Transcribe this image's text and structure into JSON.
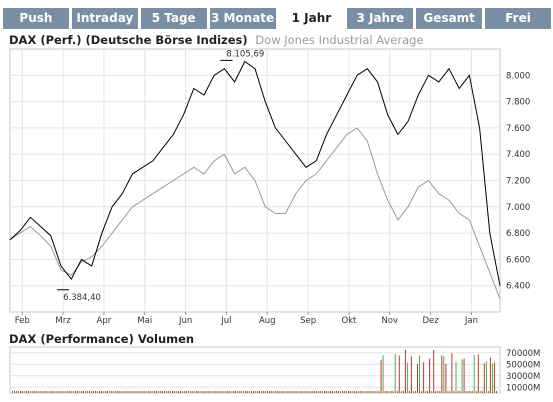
{
  "tabs": [
    {
      "label": "Push",
      "active": false
    },
    {
      "label": "Intraday",
      "active": false
    },
    {
      "label": "5 Tage",
      "active": false
    },
    {
      "label": "3 Monate",
      "active": false
    },
    {
      "label": "1 Jahr",
      "active": true
    },
    {
      "label": "3 Jahre",
      "active": false
    },
    {
      "label": "Gesamt",
      "active": false
    },
    {
      "label": "Frei",
      "active": false
    }
  ],
  "chart_title": "DAX (Perf.) (Deutsche Börse Indizes)",
  "chart_subtitle": "Dow Jones Industrial Average",
  "volume_title": "DAX (Performance) Volumen",
  "chart_data": [
    {
      "type": "line",
      "title": "DAX (Perf.) (Deutsche Börse Indizes)",
      "ylim": [
        6200,
        8200
      ],
      "y_ticks": [
        6400,
        6600,
        6800,
        7000,
        7200,
        7400,
        7600,
        7800,
        8000
      ],
      "y_tick_labels": [
        "6.400",
        "6.600",
        "6.800",
        "7.000",
        "7.200",
        "7.400",
        "7.600",
        "7.800",
        "8.000"
      ],
      "x_tick_labels": [
        "Feb",
        "Mrz",
        "Apr",
        "Mai",
        "Jun",
        "Jul",
        "Aug",
        "Sep",
        "Okt",
        "Nov",
        "Dez",
        "Jan"
      ],
      "grid": true,
      "annotations": [
        {
          "label": "8.105,69",
          "value": 8105.69,
          "month": "Jul"
        },
        {
          "label": "6.384,40",
          "value": 6384.4,
          "month": "Mrz"
        }
      ],
      "series": [
        {
          "name": "DAX (Perf.) (Deutsche Börse Indizes)",
          "color": "#000000",
          "x": [
            0,
            0.25,
            0.5,
            0.75,
            1,
            1.25,
            1.5,
            1.75,
            2,
            2.25,
            2.5,
            2.75,
            3,
            3.25,
            3.5,
            3.75,
            4,
            4.25,
            4.5,
            4.75,
            5,
            5.25,
            5.5,
            5.75,
            6,
            6.25,
            6.5,
            6.75,
            7,
            7.25,
            7.5,
            7.75,
            8,
            8.25,
            8.5,
            8.75,
            9,
            9.25,
            9.5,
            9.75,
            10,
            10.25,
            10.5,
            10.75,
            11,
            11.25,
            11.5,
            11.75,
            12
          ],
          "values": [
            6750,
            6820,
            6920,
            6850,
            6780,
            6550,
            6450,
            6600,
            6550,
            6800,
            7000,
            7100,
            7250,
            7300,
            7350,
            7450,
            7550,
            7700,
            7900,
            7850,
            8000,
            8050,
            7950,
            8105,
            8050,
            7800,
            7600,
            7500,
            7400,
            7300,
            7350,
            7550,
            7700,
            7850,
            8000,
            8050,
            7950,
            7700,
            7550,
            7650,
            7850,
            8000,
            7950,
            8050,
            7900,
            8000,
            7600,
            6800,
            6400
          ]
        },
        {
          "name": "Dow Jones Industrial Average",
          "color": "#9a9a9a",
          "x": [
            0,
            0.25,
            0.5,
            0.75,
            1,
            1.25,
            1.5,
            1.75,
            2,
            2.25,
            2.5,
            2.75,
            3,
            3.25,
            3.5,
            3.75,
            4,
            4.25,
            4.5,
            4.75,
            5,
            5.25,
            5.5,
            5.75,
            6,
            6.25,
            6.5,
            6.75,
            7,
            7.25,
            7.5,
            7.75,
            8,
            8.25,
            8.5,
            8.75,
            9,
            9.25,
            9.5,
            9.75,
            10,
            10.25,
            10.5,
            10.75,
            11,
            11.25,
            11.5,
            11.75,
            12
          ],
          "values": [
            6750,
            6800,
            6850,
            6780,
            6700,
            6520,
            6480,
            6580,
            6620,
            6700,
            6800,
            6900,
            7000,
            7050,
            7100,
            7150,
            7200,
            7250,
            7300,
            7250,
            7350,
            7400,
            7250,
            7300,
            7200,
            7000,
            6950,
            6950,
            7100,
            7200,
            7250,
            7350,
            7450,
            7550,
            7600,
            7500,
            7250,
            7050,
            6900,
            7000,
            7150,
            7200,
            7100,
            7050,
            6950,
            6900,
            6700,
            6500,
            6300
          ]
        }
      ]
    },
    {
      "type": "bar",
      "title": "DAX (Performance) Volumen",
      "ylim": [
        0,
        80000000
      ],
      "y_ticks": [
        10000000,
        30000000,
        50000000,
        70000000
      ],
      "y_tick_labels": [
        "10000M",
        "30000M",
        "50000M",
        "70000M"
      ]
    }
  ]
}
